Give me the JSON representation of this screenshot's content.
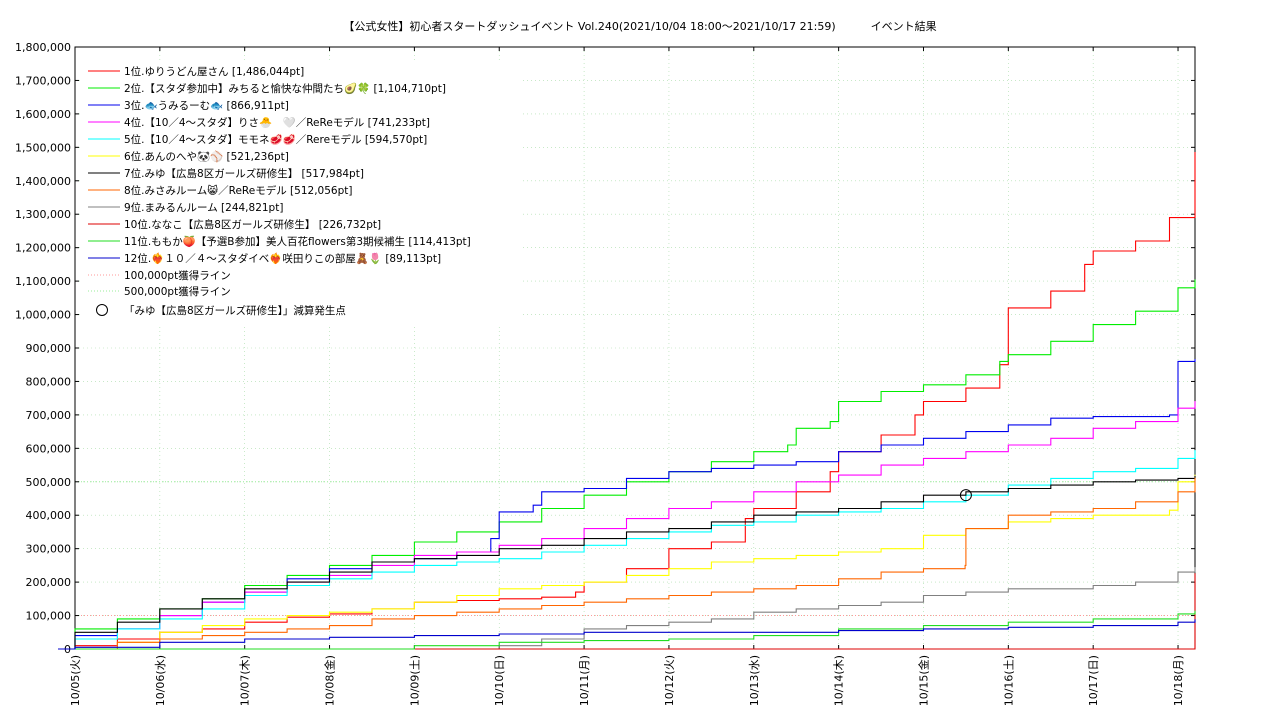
{
  "chart_data": {
    "type": "line",
    "title": "【公式女性】初心者スタートダッシュイベント Vol.240(2021/10/04 18:00～2021/10/17 21:59)          イベント結果",
    "xlabel": "",
    "ylabel": "",
    "x_domain": [
      "10/05",
      "10/18"
    ],
    "xlim": [
      0,
      13.2
    ],
    "ylim": [
      0,
      1800000
    ],
    "y_ticks": [
      {
        "value": 0,
        "label": "0"
      },
      {
        "value": 100000,
        "label": "100,000"
      },
      {
        "value": 200000,
        "label": "200,000"
      },
      {
        "value": 300000,
        "label": "300,000"
      },
      {
        "value": 400000,
        "label": "400,000"
      },
      {
        "value": 500000,
        "label": "500,000"
      },
      {
        "value": 600000,
        "label": "600,000"
      },
      {
        "value": 700000,
        "label": "700,000"
      },
      {
        "value": 800000,
        "label": "800,000"
      },
      {
        "value": 900000,
        "label": "900,000"
      },
      {
        "value": 1000000,
        "label": "1,000,000"
      },
      {
        "value": 1100000,
        "label": "1,100,000"
      },
      {
        "value": 1200000,
        "label": "1,200,000"
      },
      {
        "value": 1300000,
        "label": "1,300,000"
      },
      {
        "value": 1400000,
        "label": "1,400,000"
      },
      {
        "value": 1500000,
        "label": "1,500,000"
      },
      {
        "value": 1600000,
        "label": "1,600,000"
      },
      {
        "value": 1700000,
        "label": "1,700,000"
      },
      {
        "value": 1800000,
        "label": "1,800,000"
      }
    ],
    "x_ticks": [
      {
        "value": 0,
        "label": "10/05(火)"
      },
      {
        "value": 1,
        "label": "10/06(水)"
      },
      {
        "value": 2,
        "label": "10/07(木)"
      },
      {
        "value": 3,
        "label": "10/08(金)"
      },
      {
        "value": 4,
        "label": "10/09(土)"
      },
      {
        "value": 5,
        "label": "10/10(日)"
      },
      {
        "value": 6,
        "label": "10/11(月)"
      },
      {
        "value": 7,
        "label": "10/12(火)"
      },
      {
        "value": 8,
        "label": "10/13(水)"
      },
      {
        "value": 9,
        "label": "10/14(木)"
      },
      {
        "value": 10,
        "label": "10/15(金)"
      },
      {
        "value": 11,
        "label": "10/16(土)"
      },
      {
        "value": 12,
        "label": "10/17(日)"
      },
      {
        "value": 13,
        "label": "10/18(月)"
      }
    ],
    "grid": true,
    "legend_position": "top-left",
    "series": [
      {
        "name": "1位.ゆりうどん屋さん [1,486,044pt]",
        "color": "#ff0000",
        "x": [
          -0.2,
          0.0,
          0.5,
          1.0,
          1.5,
          2.0,
          2.5,
          3.0,
          3.5,
          4.0,
          4.5,
          5.0,
          5.5,
          5.9,
          6.0,
          6.5,
          7.0,
          7.5,
          7.9,
          8.0,
          8.5,
          8.9,
          9.0,
          9.5,
          9.9,
          10.0,
          10.5,
          10.9,
          11.0,
          11.5,
          11.9,
          12.0,
          12.5,
          12.9,
          13.2
        ],
        "y": [
          0,
          10000,
          30000,
          50000,
          60000,
          80000,
          95000,
          105000,
          120000,
          140000,
          145000,
          150000,
          155000,
          170000,
          200000,
          240000,
          300000,
          320000,
          390000,
          420000,
          470000,
          530000,
          590000,
          640000,
          700000,
          740000,
          780000,
          850000,
          1020000,
          1070000,
          1150000,
          1190000,
          1220000,
          1290000,
          1486044
        ]
      },
      {
        "name": "2位.【スタダ参加中】みちると愉快な仲間たち🥑🍀 [1,104,710pt]",
        "color": "#00ee00",
        "x": [
          -0.2,
          0.0,
          0.5,
          1.0,
          1.5,
          2.0,
          2.5,
          3.0,
          3.5,
          4.0,
          4.5,
          5.0,
          5.5,
          6.0,
          6.5,
          7.0,
          7.5,
          8.0,
          8.4,
          8.5,
          8.9,
          9.0,
          9.5,
          10.0,
          10.5,
          10.9,
          11.0,
          11.5,
          12.0,
          12.5,
          13.0,
          13.2
        ],
        "y": [
          0,
          60000,
          90000,
          120000,
          150000,
          190000,
          220000,
          250000,
          280000,
          320000,
          350000,
          380000,
          420000,
          460000,
          500000,
          530000,
          560000,
          590000,
          610000,
          660000,
          680000,
          740000,
          770000,
          790000,
          820000,
          860000,
          880000,
          920000,
          970000,
          1010000,
          1080000,
          1104710
        ]
      },
      {
        "name": "3位.🐟うみるーむ🐟 [866,911pt]",
        "color": "#0000ee",
        "x": [
          -0.2,
          0.0,
          0.5,
          1.0,
          1.5,
          2.0,
          2.5,
          3.0,
          3.5,
          4.0,
          4.5,
          4.9,
          5.0,
          5.4,
          5.5,
          6.0,
          6.5,
          7.0,
          7.5,
          8.0,
          8.5,
          8.9,
          9.0,
          9.5,
          10.0,
          10.5,
          11.0,
          11.5,
          12.0,
          12.9,
          13.0,
          13.2
        ],
        "y": [
          0,
          40000,
          60000,
          100000,
          140000,
          170000,
          210000,
          240000,
          260000,
          270000,
          290000,
          330000,
          410000,
          430000,
          470000,
          480000,
          510000,
          530000,
          540000,
          550000,
          560000,
          560000,
          590000,
          610000,
          630000,
          650000,
          670000,
          690000,
          695000,
          700000,
          860000,
          866911
        ]
      },
      {
        "name": "4位.【10／4〜スタダ】りさ🐣　🤍／ReReモデル [741,233pt]",
        "color": "#ff00ff",
        "x": [
          -0.2,
          0.0,
          0.5,
          1.0,
          1.5,
          2.0,
          2.5,
          3.0,
          3.5,
          4.0,
          4.5,
          5.0,
          5.5,
          6.0,
          6.5,
          7.0,
          7.5,
          8.0,
          8.5,
          9.0,
          9.5,
          10.0,
          10.5,
          11.0,
          11.5,
          12.0,
          12.5,
          13.0,
          13.2
        ],
        "y": [
          0,
          30000,
          60000,
          100000,
          140000,
          170000,
          200000,
          220000,
          250000,
          280000,
          290000,
          310000,
          330000,
          360000,
          390000,
          420000,
          440000,
          470000,
          500000,
          520000,
          550000,
          570000,
          590000,
          610000,
          630000,
          660000,
          680000,
          720000,
          741233
        ]
      },
      {
        "name": "5位.【10／4〜スタダ】モモネ🥩🥩／Rereモデル [594,570pt]",
        "color": "#00ffff",
        "x": [
          -0.2,
          0.0,
          0.5,
          1.0,
          1.5,
          2.0,
          2.5,
          3.0,
          3.5,
          4.0,
          4.5,
          5.0,
          5.5,
          6.0,
          6.5,
          7.0,
          7.5,
          8.0,
          8.5,
          9.0,
          9.5,
          10.0,
          10.5,
          11.0,
          11.5,
          12.0,
          12.5,
          13.0,
          13.2
        ],
        "y": [
          0,
          30000,
          60000,
          90000,
          120000,
          160000,
          190000,
          210000,
          230000,
          250000,
          260000,
          270000,
          290000,
          310000,
          330000,
          350000,
          370000,
          380000,
          400000,
          410000,
          420000,
          440000,
          460000,
          490000,
          510000,
          530000,
          540000,
          570000,
          594570
        ]
      },
      {
        "name": "6位.あんのへや🐼⚾ [521,236pt]",
        "color": "#ffff00",
        "x": [
          -0.2,
          0.5,
          1.0,
          1.5,
          2.0,
          2.5,
          3.0,
          3.5,
          4.0,
          4.5,
          5.0,
          5.5,
          6.0,
          6.5,
          7.0,
          7.5,
          8.0,
          8.5,
          9.0,
          9.5,
          10.0,
          10.5,
          11.0,
          11.5,
          12.0,
          12.9,
          13.0,
          13.2
        ],
        "y": [
          0,
          20000,
          50000,
          70000,
          90000,
          100000,
          110000,
          120000,
          140000,
          160000,
          180000,
          190000,
          200000,
          220000,
          240000,
          260000,
          270000,
          280000,
          290000,
          300000,
          340000,
          360000,
          380000,
          390000,
          400000,
          415000,
          500000,
          521236
        ]
      },
      {
        "name": "7位.みゆ【広島8区ガールズ研修生】 [517,984pt]",
        "color": "#000000",
        "x": [
          -0.2,
          0.0,
          0.5,
          1.0,
          1.5,
          2.0,
          2.5,
          3.0,
          3.5,
          4.0,
          4.5,
          5.0,
          5.5,
          6.0,
          6.5,
          7.0,
          7.5,
          8.0,
          8.5,
          9.0,
          9.5,
          10.0,
          10.5,
          11.0,
          11.5,
          12.0,
          12.5,
          13.0,
          13.2
        ],
        "y": [
          0,
          50000,
          80000,
          120000,
          150000,
          180000,
          200000,
          230000,
          260000,
          270000,
          280000,
          300000,
          310000,
          330000,
          350000,
          360000,
          380000,
          400000,
          410000,
          420000,
          440000,
          460000,
          470000,
          480000,
          490000,
          500000,
          505000,
          510000,
          517984
        ]
      },
      {
        "name": "8位.みさみルーム😸／ReReモデル [512,056pt]",
        "color": "#ff6600",
        "x": [
          -0.2,
          0.5,
          1.0,
          1.5,
          2.0,
          2.5,
          3.0,
          3.5,
          4.0,
          4.5,
          5.0,
          5.5,
          6.0,
          6.5,
          7.0,
          7.5,
          8.0,
          8.5,
          9.0,
          9.5,
          10.0,
          10.49,
          10.5,
          11.0,
          11.5,
          12.0,
          12.5,
          13.0,
          13.2
        ],
        "y": [
          0,
          20000,
          30000,
          40000,
          50000,
          60000,
          70000,
          90000,
          100000,
          110000,
          120000,
          130000,
          140000,
          150000,
          160000,
          170000,
          180000,
          190000,
          210000,
          230000,
          240000,
          250000,
          360000,
          400000,
          410000,
          420000,
          440000,
          470000,
          512056
        ]
      },
      {
        "name": "9位.まみるんルーム [244,821pt]",
        "color": "#808080",
        "x": [
          -0.2,
          1.0,
          2.0,
          3.0,
          4.0,
          5.0,
          5.5,
          6.0,
          6.5,
          7.0,
          7.5,
          8.0,
          8.5,
          9.0,
          9.5,
          10.0,
          10.5,
          11.0,
          11.5,
          12.0,
          12.5,
          13.0,
          13.2
        ],
        "y": [
          0,
          0,
          0,
          0,
          0,
          10000,
          30000,
          60000,
          70000,
          80000,
          90000,
          110000,
          120000,
          130000,
          140000,
          160000,
          170000,
          180000,
          180000,
          190000,
          200000,
          230000,
          244821
        ]
      },
      {
        "name": "10位.ななこ【広島8区ガールズ研修生】 [226,732pt]",
        "color": "#dd0000",
        "x": [
          -0.2,
          13.2
        ],
        "y": [
          0,
          226732
        ]
      },
      {
        "name": "11位.ももか🍑【予選B参加】美人百花flowers第3期候補生 [114,413pt]",
        "color": "#22dd22",
        "x": [
          -0.2,
          1.0,
          2.0,
          3.0,
          4.0,
          5.0,
          6.0,
          7.0,
          8.0,
          9.0,
          10.0,
          11.0,
          12.0,
          13.0,
          13.2
        ],
        "y": [
          0,
          0,
          0,
          0,
          10000,
          20000,
          25000,
          30000,
          40000,
          60000,
          70000,
          80000,
          90000,
          105000,
          114413
        ]
      },
      {
        "name": "12位.❤️‍🔥１０／４〜スタダイベ❤️‍🔥咲田りこの部屋🧸🌷 [89,113pt]",
        "color": "#0000cc",
        "x": [
          -0.2,
          0.0,
          1.0,
          2.0,
          3.0,
          4.0,
          5.0,
          6.0,
          7.0,
          8.0,
          9.0,
          10.0,
          11.0,
          12.0,
          13.0,
          13.2
        ],
        "y": [
          0,
          5000,
          20000,
          30000,
          35000,
          40000,
          45000,
          50000,
          50000,
          50000,
          55000,
          60000,
          65000,
          70000,
          80000,
          89113
        ]
      }
    ],
    "reference_lines": [
      {
        "name": "100,000pt獲得ライン",
        "value": 100000,
        "color": "#ff9999"
      },
      {
        "name": "500,000pt獲得ライン",
        "value": 500000,
        "color": "#99ee99"
      }
    ],
    "markers": [
      {
        "name": "「みゆ【広島8区ガールズ研修生】」減算発生点",
        "x": 10.5,
        "y": 460000
      }
    ]
  }
}
